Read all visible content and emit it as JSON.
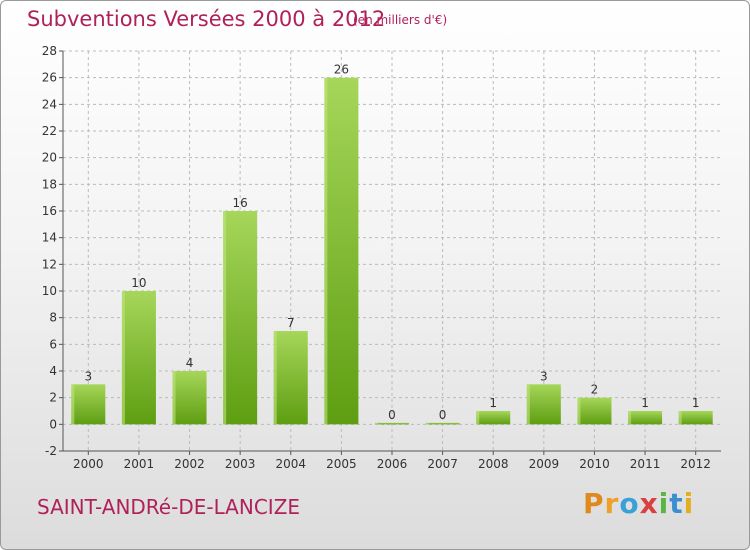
{
  "title": "Subventions Versées 2000 à 2012",
  "subtitle": "(en milliers d'€)",
  "commune": "SAINT-ANDRé-DE-LANCIZE",
  "logo": [
    "P",
    "r",
    "o",
    "x",
    "i",
    "t",
    "i"
  ],
  "colors": {
    "bar_light": "#a6d65a",
    "bar_dark": "#5e9e12",
    "text_accent": "#b0215a",
    "grid": "#bbbbbb"
  },
  "chart_data": {
    "type": "bar",
    "categories": [
      "2000",
      "2001",
      "2002",
      "2003",
      "2004",
      "2005",
      "2006",
      "2007",
      "2008",
      "2009",
      "2010",
      "2011",
      "2012"
    ],
    "values": [
      3,
      10,
      4,
      16,
      7,
      26,
      0,
      0,
      1,
      3,
      2,
      1,
      1
    ],
    "value_labels": [
      "3",
      "10",
      "4",
      "16",
      "7",
      "26",
      "0",
      "0",
      "1",
      "3",
      "2",
      "1",
      "1"
    ],
    "ylim": [
      -2,
      28
    ],
    "yticks": [
      -2,
      0,
      2,
      4,
      6,
      8,
      10,
      12,
      14,
      16,
      18,
      20,
      22,
      24,
      26,
      28
    ],
    "grid": true,
    "title": "Subventions Versées 2000 à 2012",
    "xlabel": "",
    "ylabel": ""
  }
}
